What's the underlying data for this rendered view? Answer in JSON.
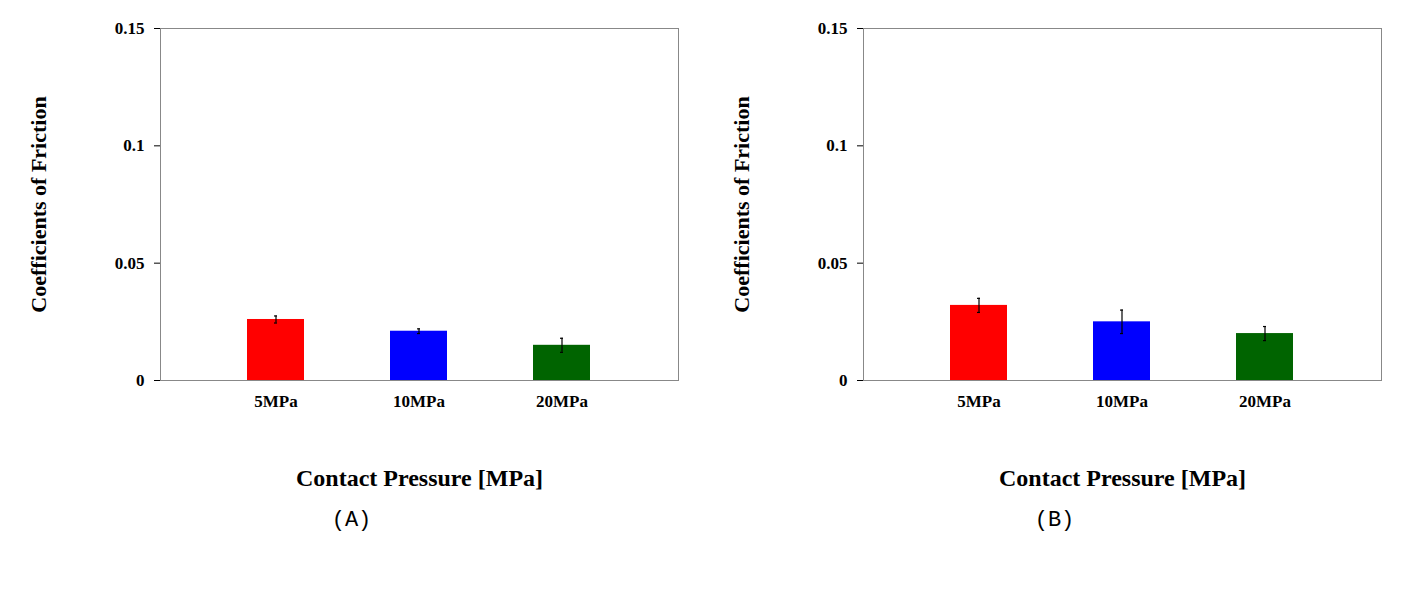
{
  "chart_data": [
    {
      "type": "bar",
      "title": "(A)",
      "x_label": "Contact Pressure [MPa]",
      "y_label": "Coefficients of Friction",
      "categories": [
        "5MPa",
        "10MPa",
        "20MPa"
      ],
      "values": [
        0.026,
        0.021,
        0.015
      ],
      "errors": [
        0.0015,
        0.001,
        0.003
      ],
      "colors": [
        "#ff0000",
        "#0000ff",
        "#006400"
      ],
      "ylim": [
        0,
        0.15
      ],
      "yticks": [
        0,
        0.05,
        0.1,
        0.15
      ],
      "grid": false
    },
    {
      "type": "bar",
      "title": "(B)",
      "x_label": "Contact Pressure [MPa]",
      "y_label": "Coefficients of Friction",
      "categories": [
        "5MPa",
        "10MPa",
        "20MPa"
      ],
      "values": [
        0.032,
        0.025,
        0.02
      ],
      "errors": [
        0.003,
        0.005,
        0.003
      ],
      "colors": [
        "#ff0000",
        "#0000ff",
        "#006400"
      ],
      "ylim": [
        0,
        0.15
      ],
      "yticks": [
        0,
        0.05,
        0.1,
        0.15
      ],
      "grid": false
    }
  ]
}
